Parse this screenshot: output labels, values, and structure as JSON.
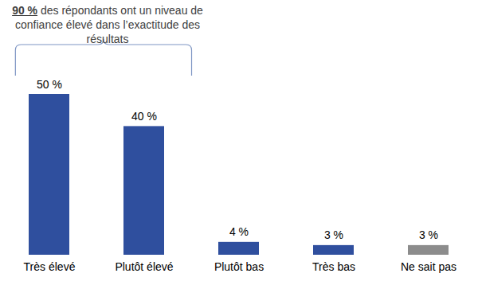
{
  "chart_data": {
    "type": "bar",
    "annotation": {
      "text": "90 % des répondants ont un niveau de confiance élevé dans l’exactitude des résultats",
      "emphasis": "90 %",
      "span": [
        "Très élevé",
        "Plutôt élevé"
      ]
    },
    "categories": [
      "Très élevé",
      "Plutôt élevé",
      "Plutôt bas",
      "Très bas",
      "Ne sait pas"
    ],
    "values": [
      50,
      40,
      4,
      3,
      3
    ],
    "value_labels": [
      "50 %",
      "40 %",
      "4 %",
      "3 %",
      "3 %"
    ],
    "colors": [
      "#2f4f9e",
      "#2f4f9e",
      "#2f4f9e",
      "#2f4f9e",
      "#8c8c8c"
    ],
    "data_labels": true,
    "tick_labels": "x",
    "grid": false
  }
}
